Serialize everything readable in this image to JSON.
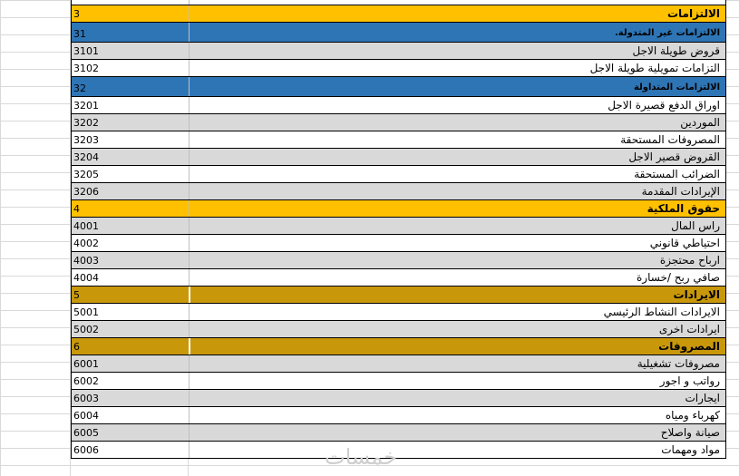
{
  "rows": [
    {
      "code": "",
      "name": "",
      "style": "topcut"
    },
    {
      "code": "3",
      "name": "الالتزامات",
      "style": "orange"
    },
    {
      "code": "31",
      "name": "الالتزامات غير المتدولة.",
      "style": "blue"
    },
    {
      "code": "3101",
      "name": "قروض طويلة الاجل",
      "style": "gray"
    },
    {
      "code": "3102",
      "name": "التزامات تمويلية طويلة الاجل",
      "style": "white"
    },
    {
      "code": "32",
      "name": "الالتزامات المتداولة",
      "style": "blue"
    },
    {
      "code": "3201",
      "name": "اوراق الدفع قصيرة الاجل",
      "style": "white"
    },
    {
      "code": "3202",
      "name": "الموردين",
      "style": "gray"
    },
    {
      "code": "3203",
      "name": "المصروفات المستحقة",
      "style": "white"
    },
    {
      "code": "3204",
      "name": "القروض قصير الاجل",
      "style": "gray"
    },
    {
      "code": "3205",
      "name": "الضرائب المستحقة",
      "style": "white"
    },
    {
      "code": "3206",
      "name": "الإيرادات المقدمة",
      "style": "gray"
    },
    {
      "code": "4",
      "name": "حقوق الملكية",
      "style": "orange"
    },
    {
      "code": "4001",
      "name": "راس المال",
      "style": "gray"
    },
    {
      "code": "4002",
      "name": "احتياطي قانوني",
      "style": "white"
    },
    {
      "code": "4003",
      "name": "ارباح محتجزة",
      "style": "gray"
    },
    {
      "code": "4004",
      "name": "صافي ربح /خسارة",
      "style": "white"
    },
    {
      "code": "5",
      "name": "الايرادات",
      "style": "gold"
    },
    {
      "code": "5001",
      "name": "الايرادات النشاط الرئيسي",
      "style": "white"
    },
    {
      "code": "5002",
      "name": "ايرادات اخرى",
      "style": "gray"
    },
    {
      "code": "6",
      "name": "المصروفات",
      "style": "gold"
    },
    {
      "code": "6001",
      "name": "مصروفات تشغيلية",
      "style": "gray"
    },
    {
      "code": "6002",
      "name": "رواتب و اجور",
      "style": "white"
    },
    {
      "code": "6003",
      "name": "ايجارات",
      "style": "gray"
    },
    {
      "code": "6004",
      "name": "كهرباء ومياه",
      "style": "white"
    },
    {
      "code": "6005",
      "name": "صيانة واصلاح",
      "style": "gray"
    },
    {
      "code": "6006",
      "name": "مواد ومهمات",
      "style": "white"
    }
  ],
  "watermark": "خمسات"
}
